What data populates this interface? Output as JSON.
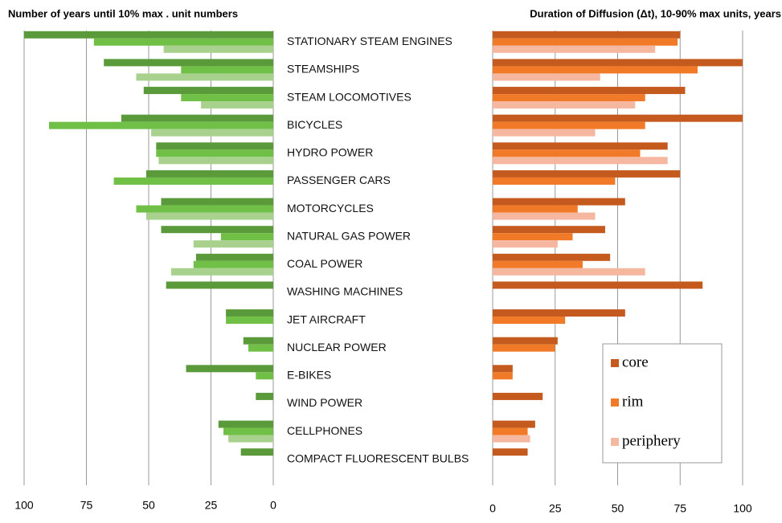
{
  "chart_data": [
    {
      "type": "bar",
      "orientation": "horizontal",
      "title": "Number of years until 10% max . unit numbers",
      "categories": [
        "STATIONARY STEAM ENGINES",
        "STEAMSHIPS",
        "STEAM LOCOMOTIVES",
        "BICYCLES",
        "HYDRO POWER",
        "PASSENGER CARS",
        "MOTORCYCLES",
        "NATURAL GAS POWER",
        "COAL POWER",
        "WASHING MACHINES",
        "JET AIRCRAFT",
        "NUCLEAR POWER",
        "E-BIKES",
        "WIND POWER",
        "CELLPHONES",
        "COMPACT FLUORESCENT BULBS"
      ],
      "series": [
        {
          "color": "#5b9a3b",
          "values": [
            100,
            68,
            52,
            61,
            47,
            51,
            45,
            45,
            31,
            43,
            19,
            12,
            35,
            7,
            22,
            13
          ]
        },
        {
          "color": "#70bf46",
          "values": [
            72,
            37,
            37,
            90,
            47,
            64,
            55,
            21,
            32,
            null,
            19,
            10,
            7,
            null,
            20,
            null
          ]
        },
        {
          "color": "#a9d18e",
          "values": [
            44,
            55,
            29,
            49,
            46,
            null,
            51,
            32,
            41,
            null,
            null,
            null,
            null,
            null,
            18,
            null
          ]
        }
      ],
      "xlim": [
        100,
        0
      ],
      "xticks": [
        100,
        75,
        50,
        25,
        0
      ],
      "grid": true
    },
    {
      "type": "bar",
      "orientation": "horizontal",
      "title": "Duration of Diffusion (Δt), 10-90% max units, years",
      "series": [
        {
          "name": "core",
          "color": "#c55a1e",
          "values": [
            75,
            100,
            77,
            100,
            70,
            75,
            53,
            45,
            47,
            84,
            53,
            26,
            8,
            20,
            17,
            14
          ]
        },
        {
          "name": "rim",
          "color": "#f07a28",
          "values": [
            74,
            82,
            61,
            61,
            59,
            49,
            34,
            32,
            36,
            null,
            29,
            25,
            8,
            null,
            14,
            null
          ]
        },
        {
          "name": "periphery",
          "color": "#f6b7a0",
          "values": [
            65,
            43,
            57,
            41,
            70,
            null,
            41,
            26,
            61,
            null,
            null,
            null,
            null,
            null,
            15,
            null
          ]
        }
      ],
      "xlim": [
        0,
        100
      ],
      "xticks": [
        0,
        25,
        50,
        75,
        100
      ],
      "grid": true,
      "legend": "lower right"
    }
  ]
}
